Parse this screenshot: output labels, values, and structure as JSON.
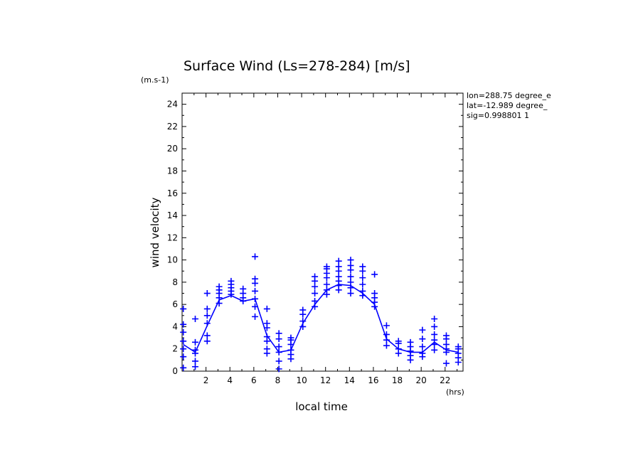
{
  "chart_data": {
    "type": "scatter",
    "title": "Surface Wind  (Ls=278-284) [m/s]",
    "ylabel": "wind velocity",
    "xlabel": "local time",
    "y_unit": "(m.s-1)",
    "x_unit": "(hrs)",
    "xlim": [
      0,
      23.5
    ],
    "ylim": [
      0,
      25
    ],
    "x_ticks": [
      2,
      4,
      6,
      8,
      10,
      12,
      14,
      16,
      18,
      20,
      22
    ],
    "y_ticks": [
      0,
      2,
      4,
      6,
      8,
      10,
      12,
      14,
      16,
      18,
      20,
      22,
      24
    ],
    "grid": false,
    "color": "#0000ff",
    "annotations": [
      "lon=288.75 degree_e",
      "lat=-12.989 degree_",
      "sig=0.998801 1"
    ],
    "mean_line": {
      "x": [
        0.1,
        1.1,
        2.1,
        3.1,
        4.1,
        5.1,
        6.1,
        7.1,
        8.1,
        9.1,
        10.1,
        11.1,
        12.1,
        13.1,
        14.1,
        15.1,
        16.1,
        17.1,
        18.1,
        19.1,
        20.1,
        21.1,
        22.1,
        23.1
      ],
      "y": [
        2.4,
        1.7,
        4.1,
        6.4,
        6.8,
        6.3,
        6.5,
        3.2,
        1.7,
        1.9,
        4.3,
        6.0,
        7.3,
        7.8,
        7.7,
        7.0,
        6.0,
        2.9,
        2.0,
        1.7,
        1.7,
        2.6,
        1.9,
        1.7
      ]
    },
    "points": [
      [
        0.1,
        0.3
      ],
      [
        0.1,
        1.3
      ],
      [
        0.1,
        2.0
      ],
      [
        0.1,
        2.7
      ],
      [
        0.1,
        3.5
      ],
      [
        0.1,
        4.2
      ],
      [
        0.1,
        5.6
      ],
      [
        1.1,
        0.4
      ],
      [
        1.1,
        0.9
      ],
      [
        1.1,
        1.6
      ],
      [
        1.1,
        1.9
      ],
      [
        1.1,
        2.6
      ],
      [
        1.1,
        4.7
      ],
      [
        2.1,
        2.7
      ],
      [
        2.1,
        3.2
      ],
      [
        2.1,
        4.3
      ],
      [
        2.1,
        5.0
      ],
      [
        2.1,
        5.6
      ],
      [
        2.1,
        7.0
      ],
      [
        3.1,
        6.1
      ],
      [
        3.1,
        6.6
      ],
      [
        3.1,
        7.0
      ],
      [
        3.1,
        7.3
      ],
      [
        3.1,
        7.6
      ],
      [
        4.1,
        6.9
      ],
      [
        4.1,
        7.2
      ],
      [
        4.1,
        7.5
      ],
      [
        4.1,
        7.8
      ],
      [
        4.1,
        8.1
      ],
      [
        5.1,
        6.3
      ],
      [
        5.1,
        6.6
      ],
      [
        5.1,
        7.0
      ],
      [
        5.1,
        7.4
      ],
      [
        6.1,
        4.9
      ],
      [
        6.1,
        5.8
      ],
      [
        6.1,
        6.5
      ],
      [
        6.1,
        7.2
      ],
      [
        6.1,
        7.9
      ],
      [
        6.1,
        8.3
      ],
      [
        6.1,
        10.3
      ],
      [
        7.1,
        1.6
      ],
      [
        7.1,
        2.0
      ],
      [
        7.1,
        2.7
      ],
      [
        7.1,
        3.1
      ],
      [
        7.1,
        3.9
      ],
      [
        7.1,
        4.3
      ],
      [
        7.1,
        5.6
      ],
      [
        8.1,
        0.2
      ],
      [
        8.1,
        0.9
      ],
      [
        8.1,
        1.7
      ],
      [
        8.1,
        2.2
      ],
      [
        8.1,
        2.9
      ],
      [
        8.1,
        3.4
      ],
      [
        9.1,
        1.1
      ],
      [
        9.1,
        1.5
      ],
      [
        9.1,
        1.9
      ],
      [
        9.1,
        2.4
      ],
      [
        9.1,
        2.8
      ],
      [
        9.1,
        3.0
      ],
      [
        10.1,
        4.0
      ],
      [
        10.1,
        4.5
      ],
      [
        10.1,
        5.1
      ],
      [
        10.1,
        5.5
      ],
      [
        11.1,
        5.8
      ],
      [
        11.1,
        6.3
      ],
      [
        11.1,
        7.0
      ],
      [
        11.1,
        7.6
      ],
      [
        11.1,
        8.1
      ],
      [
        11.1,
        8.5
      ],
      [
        12.1,
        6.9
      ],
      [
        12.1,
        7.3
      ],
      [
        12.1,
        7.8
      ],
      [
        12.1,
        8.4
      ],
      [
        12.1,
        8.8
      ],
      [
        12.1,
        9.2
      ],
      [
        12.1,
        9.4
      ],
      [
        13.1,
        7.3
      ],
      [
        13.1,
        7.7
      ],
      [
        13.1,
        8.1
      ],
      [
        13.1,
        8.5
      ],
      [
        13.1,
        9.0
      ],
      [
        13.1,
        9.4
      ],
      [
        13.1,
        9.9
      ],
      [
        14.1,
        7.0
      ],
      [
        14.1,
        7.5
      ],
      [
        14.1,
        8.0
      ],
      [
        14.1,
        8.5
      ],
      [
        14.1,
        9.1
      ],
      [
        14.1,
        9.5
      ],
      [
        14.1,
        10.0
      ],
      [
        15.1,
        6.8
      ],
      [
        15.1,
        7.2
      ],
      [
        15.1,
        7.8
      ],
      [
        15.1,
        8.4
      ],
      [
        15.1,
        9.0
      ],
      [
        15.1,
        9.4
      ],
      [
        16.1,
        5.8
      ],
      [
        16.1,
        6.2
      ],
      [
        16.1,
        6.6
      ],
      [
        16.1,
        7.0
      ],
      [
        16.1,
        8.7
      ],
      [
        17.1,
        2.3
      ],
      [
        17.1,
        2.8
      ],
      [
        17.1,
        3.3
      ],
      [
        17.1,
        4.1
      ],
      [
        18.1,
        1.6
      ],
      [
        18.1,
        2.0
      ],
      [
        18.1,
        2.5
      ],
      [
        18.1,
        2.7
      ],
      [
        19.1,
        1.0
      ],
      [
        19.1,
        1.4
      ],
      [
        19.1,
        1.8
      ],
      [
        19.1,
        2.2
      ],
      [
        19.1,
        2.6
      ],
      [
        20.1,
        1.3
      ],
      [
        20.1,
        1.6
      ],
      [
        20.1,
        2.2
      ],
      [
        20.1,
        2.9
      ],
      [
        20.1,
        3.7
      ],
      [
        21.1,
        1.9
      ],
      [
        21.1,
        2.4
      ],
      [
        21.1,
        2.8
      ],
      [
        21.1,
        3.3
      ],
      [
        21.1,
        4.0
      ],
      [
        21.1,
        4.7
      ],
      [
        22.1,
        0.7
      ],
      [
        22.1,
        1.7
      ],
      [
        22.1,
        2.0
      ],
      [
        22.1,
        2.4
      ],
      [
        22.1,
        2.9
      ],
      [
        22.1,
        3.2
      ],
      [
        23.1,
        0.8
      ],
      [
        23.1,
        1.2
      ],
      [
        23.1,
        1.6
      ],
      [
        23.1,
        2.0
      ],
      [
        23.1,
        2.2
      ]
    ]
  }
}
